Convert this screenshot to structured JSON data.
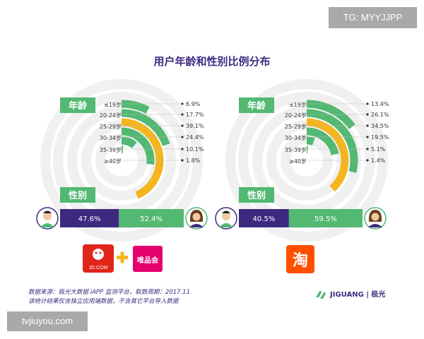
{
  "watermarks": {
    "top": "TG: MYYJJPP",
    "bottom": "tvjiuyou.com"
  },
  "title": "用户年龄和性别比例分布",
  "colors": {
    "green": "#52b872",
    "yellow": "#f4b51e",
    "purple": "#3d2a80",
    "label_bg": "#52b872"
  },
  "chart_data": [
    {
      "type": "radial-bar",
      "label": "年龄",
      "categories": [
        "≤19岁",
        "20-24岁",
        "25-29岁",
        "30-34岁",
        "35-39岁",
        "≥40岁"
      ],
      "values": [
        6.9,
        17.7,
        39.1,
        24.4,
        10.1,
        1.8
      ],
      "value_labels": [
        "6.9%",
        "17.7%",
        "39.1%",
        "24.4%",
        "10.1%",
        "1.8%"
      ],
      "highlight": "25-29岁",
      "gender_label": "性别",
      "gender": {
        "male": 47.6,
        "female": 52.4,
        "male_label": "47.6%",
        "female_label": "52.4%"
      },
      "brand_logos": [
        "JD.COM",
        "唯品会"
      ]
    },
    {
      "type": "radial-bar",
      "label": "年龄",
      "categories": [
        "≤19岁",
        "20-24岁",
        "25-29岁",
        "30-34岁",
        "35-39岁",
        "≥40岁"
      ],
      "values": [
        13.4,
        26.1,
        34.5,
        19.5,
        5.1,
        1.4
      ],
      "value_labels": [
        "13.4%",
        "26.1%",
        "34.5%",
        "19.5%",
        "5.1%",
        "1.4%"
      ],
      "highlight": "25-29岁",
      "gender_label": "性别",
      "gender": {
        "male": 40.5,
        "female": 59.5,
        "male_label": "40.5%",
        "female_label": "59.5%"
      },
      "brand_logos": [
        "淘"
      ]
    }
  ],
  "footer": {
    "line1": "数据来源：极光大数据 iAPP 监测平台，取数周期：2017.11",
    "line2": "该统计结果仅含独立应用端数据，不含其它平台导入数据"
  },
  "brand": "JIGUANG | 极光"
}
